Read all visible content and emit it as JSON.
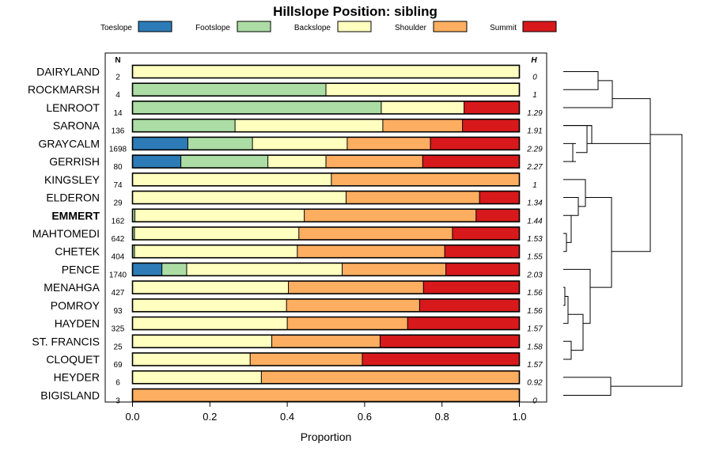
{
  "chart_data": {
    "type": "stacked-bar-horizontal",
    "title": "Hillslope Position: sibling",
    "xlabel": "Proportion",
    "xlim": [
      0,
      1
    ],
    "xticks": [
      "0.0",
      "0.2",
      "0.4",
      "0.6",
      "0.8",
      "1.0"
    ],
    "n_header": "N",
    "h_header": "H",
    "legend": [
      {
        "name": "Toeslope",
        "color": "#2c7bb6"
      },
      {
        "name": "Footslope",
        "color": "#abdda4"
      },
      {
        "name": "Backslope",
        "color": "#ffffbf"
      },
      {
        "name": "Shoulder",
        "color": "#fdae61"
      },
      {
        "name": "Summit",
        "color": "#d7191c"
      }
    ],
    "rows": [
      {
        "name": "DAIRYLAND",
        "n": "2",
        "h": "0",
        "values": [
          0,
          0,
          1.0,
          0,
          0
        ],
        "bold": false
      },
      {
        "name": "ROCKMARSH",
        "n": "4",
        "h": "1",
        "values": [
          0,
          0.5,
          0.5,
          0,
          0
        ],
        "bold": false
      },
      {
        "name": "LENROOT",
        "n": "14",
        "h": "1.29",
        "values": [
          0,
          0.643,
          0.214,
          0,
          0.143
        ],
        "bold": false
      },
      {
        "name": "SARONA",
        "n": "136",
        "h": "1.91",
        "values": [
          0,
          0.265,
          0.382,
          0.206,
          0.147
        ],
        "bold": false
      },
      {
        "name": "GRAYCALM",
        "n": "1698",
        "h": "2.29",
        "values": [
          0.143,
          0.167,
          0.245,
          0.215,
          0.23
        ],
        "bold": false
      },
      {
        "name": "GERRISH",
        "n": "80",
        "h": "2.27",
        "values": [
          0.125,
          0.225,
          0.15,
          0.25,
          0.25
        ],
        "bold": false
      },
      {
        "name": "KINGSLEY",
        "n": "74",
        "h": "1",
        "values": [
          0,
          0,
          0.514,
          0.486,
          0
        ],
        "bold": false
      },
      {
        "name": "ELDERON",
        "n": "29",
        "h": "1.34",
        "values": [
          0,
          0,
          0.552,
          0.345,
          0.103
        ],
        "bold": false
      },
      {
        "name": "EMMERT",
        "n": "162",
        "h": "1.44",
        "values": [
          0,
          0.006,
          0.438,
          0.444,
          0.112
        ],
        "bold": true
      },
      {
        "name": "MAHTOMEDI",
        "n": "642",
        "h": "1.53",
        "values": [
          0,
          0.005,
          0.425,
          0.397,
          0.173
        ],
        "bold": false
      },
      {
        "name": "CHETEK",
        "n": "404",
        "h": "1.55",
        "values": [
          0,
          0.005,
          0.421,
          0.381,
          0.193
        ],
        "bold": false
      },
      {
        "name": "PENCE",
        "n": "1740",
        "h": "2.03",
        "values": [
          0.076,
          0.064,
          0.402,
          0.268,
          0.19
        ],
        "bold": false
      },
      {
        "name": "MENAHGA",
        "n": "427",
        "h": "1.56",
        "values": [
          0,
          0,
          0.403,
          0.349,
          0.248
        ],
        "bold": false
      },
      {
        "name": "POMROY",
        "n": "93",
        "h": "1.56",
        "values": [
          0,
          0,
          0.398,
          0.344,
          0.258
        ],
        "bold": false
      },
      {
        "name": "HAYDEN",
        "n": "325",
        "h": "1.57",
        "values": [
          0,
          0,
          0.4,
          0.311,
          0.289
        ],
        "bold": false
      },
      {
        "name": "ST. FRANCIS",
        "n": "25",
        "h": "1.58",
        "values": [
          0,
          0,
          0.36,
          0.28,
          0.36
        ],
        "bold": false
      },
      {
        "name": "CLOQUET",
        "n": "69",
        "h": "1.57",
        "values": [
          0,
          0,
          0.304,
          0.29,
          0.406
        ],
        "bold": false
      },
      {
        "name": "HEYDER",
        "n": "6",
        "h": "0.92",
        "values": [
          0,
          0,
          0.333,
          0.667,
          0
        ],
        "bold": false
      },
      {
        "name": "BIGISLAND",
        "n": "3",
        "h": "0",
        "values": [
          0,
          0,
          0,
          1.0,
          0
        ],
        "bold": false
      }
    ]
  }
}
